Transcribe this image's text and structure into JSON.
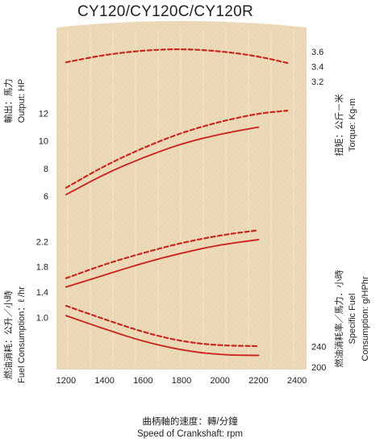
{
  "title": "CY120/CY120C/CY120R",
  "colors": {
    "panel": "#ecd9b8",
    "line": "#c8281f",
    "grid": "#f7ecd7"
  },
  "chart_data": {
    "type": "line",
    "x_axis": {
      "ticks": [
        "1200",
        "1400",
        "1600",
        "1800",
        "2000",
        "2200",
        "2400"
      ],
      "xlim": [
        1150,
        2450
      ],
      "label_cn": "曲柄軸的速度：轉/分鐘",
      "label_en": "Speed of Crankshaft: rpm"
    },
    "panels": [
      {
        "id": "torque",
        "side": "right",
        "label_cn": "扭矩：公斤－米",
        "label_en": "Torque: Kg-m",
        "ticks": [
          "3.6",
          "3.4",
          "3.2"
        ],
        "tick_values": [
          3.6,
          3.4,
          3.2
        ],
        "ylim": [
          3.05,
          3.7
        ],
        "series": [
          {
            "style": "dashed",
            "x": [
              1200,
              1400,
              1600,
              1800,
              2000,
              2200,
              2350
            ],
            "y": [
              3.46,
              3.56,
              3.62,
              3.64,
              3.61,
              3.54,
              3.45
            ]
          }
        ]
      },
      {
        "id": "output",
        "side": "left",
        "label_cn": "輸出：馬力",
        "label_en": "Output: HP",
        "ticks": [
          "12",
          "10",
          "8",
          "6"
        ],
        "tick_values": [
          12,
          10,
          8,
          6
        ],
        "ylim": [
          5.0,
          13.2
        ],
        "series": [
          {
            "style": "solid",
            "x": [
              1200,
              1400,
              1600,
              1800,
              2000,
              2200
            ],
            "y": [
              6.1,
              7.6,
              8.8,
              9.8,
              10.5,
              11.0
            ]
          },
          {
            "style": "dashed",
            "x": [
              1200,
              1400,
              1600,
              1800,
              2000,
              2200,
              2350
            ],
            "y": [
              6.6,
              8.2,
              9.5,
              10.6,
              11.4,
              12.0,
              12.2
            ]
          }
        ]
      },
      {
        "id": "fuel_consumption",
        "side": "left",
        "label_cn": "燃油消耗：公升／小時",
        "label_en": "Fuel Consumption：ℓ /hr",
        "ticks": [
          "2.2",
          "1.8",
          "1.4",
          "1.0"
        ],
        "tick_values": [
          2.2,
          1.8,
          1.4,
          1.0
        ],
        "ylim": [
          0.85,
          2.55
        ],
        "series": [
          {
            "style": "solid",
            "x": [
              1200,
              1400,
              1600,
              1800,
              2000,
              2200
            ],
            "y": [
              1.48,
              1.67,
              1.86,
              2.02,
              2.15,
              2.23
            ]
          },
          {
            "style": "dashed",
            "x": [
              1200,
              1400,
              1600,
              1800,
              2000,
              2200
            ],
            "y": [
              1.62,
              1.84,
              2.02,
              2.18,
              2.3,
              2.38
            ]
          }
        ]
      },
      {
        "id": "specific_fuel",
        "side": "right",
        "label_cn": "燃油消耗率／馬力．小時",
        "label_en1": "Specific Fuel",
        "label_en2": "Consumption: g/HPhr",
        "ticks": [
          "240",
          "200"
        ],
        "tick_values": [
          240,
          200
        ],
        "ylim": [
          180,
          330
        ],
        "series": [
          {
            "style": "solid",
            "x": [
              1200,
              1400,
              1600,
              1800,
              2000,
              2200
            ],
            "y": [
              300,
              274,
              250,
              233,
              224,
              223
            ]
          },
          {
            "style": "dashed",
            "x": [
              1200,
              1400,
              1600,
              1800,
              2000,
              2200
            ],
            "y": [
              319,
              293,
              268,
              250,
              242,
              241
            ]
          }
        ]
      }
    ]
  }
}
